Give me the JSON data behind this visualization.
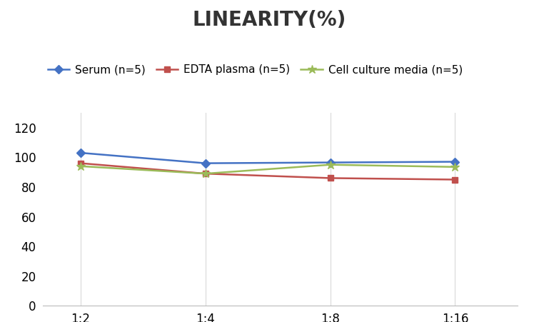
{
  "title": "LINEARITY(%)",
  "title_fontsize": 20,
  "title_fontweight": "bold",
  "x_labels": [
    "1:2",
    "1:4",
    "1:8",
    "1:16"
  ],
  "x_positions": [
    0,
    1,
    2,
    3
  ],
  "series": [
    {
      "label": "Serum (n=5)",
      "values": [
        103,
        96,
        96.5,
        97
      ],
      "color": "#4472C4",
      "marker": "D",
      "markersize": 6,
      "linewidth": 1.8
    },
    {
      "label": "EDTA plasma (n=5)",
      "values": [
        96,
        89,
        86,
        85
      ],
      "color": "#C0504D",
      "marker": "s",
      "markersize": 6,
      "linewidth": 1.8
    },
    {
      "label": "Cell culture media (n=5)",
      "values": [
        94,
        89,
        95,
        93.5
      ],
      "color": "#9BBB59",
      "marker": "*",
      "markersize": 9,
      "linewidth": 1.8
    }
  ],
  "ylim": [
    0,
    130
  ],
  "yticks": [
    0,
    20,
    40,
    60,
    80,
    100,
    120
  ],
  "grid_color": "#D9D9D9",
  "background_color": "#FFFFFF",
  "legend_fontsize": 11,
  "axis_fontsize": 12,
  "xlim": [
    -0.3,
    3.5
  ]
}
